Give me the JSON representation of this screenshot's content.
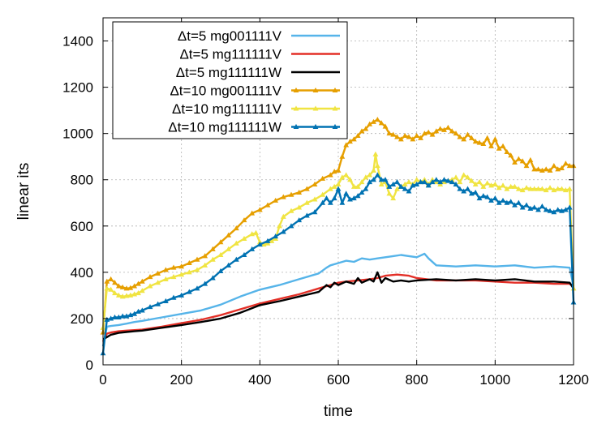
{
  "chart_data": {
    "type": "line",
    "xlabel": "time",
    "ylabel": "linear its",
    "xlim": [
      0,
      1200
    ],
    "ylim": [
      0,
      1500
    ],
    "xticks": [
      0,
      200,
      400,
      600,
      800,
      1000,
      1200
    ],
    "yticks": [
      0,
      200,
      400,
      600,
      800,
      1000,
      1200,
      1400
    ],
    "grid": true,
    "legend_position": "top-left",
    "series": [
      {
        "name": "Δt=5 mg001111V",
        "color": "#56B4E9",
        "marker": "none",
        "x": [
          0,
          10,
          20,
          40,
          60,
          80,
          100,
          150,
          200,
          250,
          300,
          350,
          400,
          450,
          500,
          550,
          570,
          580,
          600,
          620,
          640,
          660,
          680,
          700,
          720,
          740,
          760,
          780,
          800,
          820,
          830,
          850,
          900,
          950,
          1000,
          1050,
          1100,
          1150,
          1190,
          1200
        ],
        "y": [
          80,
          165,
          168,
          172,
          178,
          185,
          190,
          205,
          220,
          235,
          260,
          295,
          325,
          345,
          370,
          395,
          420,
          430,
          440,
          450,
          445,
          460,
          455,
          460,
          465,
          470,
          475,
          470,
          465,
          480,
          460,
          430,
          425,
          430,
          425,
          430,
          420,
          425,
          420,
          340
        ]
      },
      {
        "name": "Δt=5 mg111111V",
        "color": "#E32F27",
        "marker": "none",
        "x": [
          0,
          10,
          20,
          40,
          60,
          80,
          100,
          150,
          200,
          250,
          300,
          350,
          400,
          450,
          500,
          550,
          580,
          600,
          620,
          650,
          680,
          700,
          720,
          750,
          780,
          800,
          850,
          900,
          950,
          1000,
          1050,
          1100,
          1150,
          1190,
          1200
        ],
        "y": [
          100,
          135,
          140,
          145,
          148,
          150,
          152,
          165,
          180,
          195,
          215,
          240,
          265,
          285,
          305,
          330,
          345,
          355,
          360,
          365,
          370,
          375,
          385,
          390,
          385,
          375,
          365,
          365,
          365,
          360,
          355,
          355,
          350,
          350,
          340
        ]
      },
      {
        "name": "Δt=5 mg111111W",
        "color": "#000000",
        "marker": "none",
        "x": [
          0,
          10,
          20,
          40,
          60,
          80,
          100,
          150,
          200,
          250,
          300,
          350,
          400,
          450,
          500,
          550,
          570,
          580,
          590,
          600,
          620,
          640,
          650,
          660,
          680,
          690,
          700,
          710,
          720,
          740,
          760,
          780,
          800,
          850,
          900,
          950,
          1000,
          1050,
          1100,
          1150,
          1190,
          1200
        ],
        "y": [
          110,
          120,
          130,
          138,
          142,
          145,
          148,
          160,
          172,
          185,
          200,
          225,
          258,
          275,
          295,
          315,
          345,
          335,
          355,
          345,
          360,
          350,
          375,
          355,
          370,
          360,
          400,
          355,
          375,
          360,
          365,
          360,
          365,
          370,
          365,
          370,
          365,
          370,
          360,
          360,
          355,
          330
        ]
      },
      {
        "name": "Δt=10 mg001111V",
        "color": "#E69F00",
        "marker": "triangle",
        "x": [
          0,
          10,
          20,
          30,
          40,
          50,
          60,
          70,
          80,
          90,
          100,
          120,
          140,
          160,
          180,
          200,
          220,
          240,
          260,
          280,
          300,
          320,
          340,
          360,
          380,
          400,
          420,
          440,
          460,
          480,
          500,
          520,
          540,
          560,
          580,
          590,
          600,
          610,
          620,
          630,
          640,
          650,
          660,
          670,
          680,
          690,
          700,
          710,
          720,
          730,
          740,
          750,
          760,
          770,
          780,
          790,
          800,
          810,
          820,
          830,
          840,
          850,
          860,
          870,
          880,
          890,
          900,
          910,
          920,
          930,
          940,
          950,
          960,
          970,
          980,
          990,
          1000,
          1010,
          1020,
          1030,
          1040,
          1050,
          1060,
          1070,
          1080,
          1090,
          1100,
          1110,
          1120,
          1130,
          1140,
          1150,
          1160,
          1170,
          1180,
          1190,
          1200
        ],
        "y": [
          140,
          360,
          370,
          355,
          340,
          335,
          330,
          332,
          340,
          350,
          360,
          380,
          395,
          410,
          420,
          425,
          440,
          455,
          470,
          500,
          530,
          560,
          590,
          625,
          655,
          670,
          690,
          710,
          725,
          735,
          745,
          760,
          780,
          805,
          820,
          835,
          840,
          900,
          950,
          965,
          975,
          990,
          1010,
          1020,
          1040,
          1050,
          1060,
          1045,
          1030,
          1000,
          995,
          985,
          975,
          990,
          985,
          975,
          990,
          980,
          1000,
          1005,
          995,
          1010,
          1020,
          1015,
          1025,
          1010,
          1000,
          985,
          975,
          995,
          980,
          965,
          960,
          955,
          980,
          945,
          975,
          935,
          945,
          920,
          905,
          875,
          890,
          880,
          860,
          885,
          845,
          845,
          840,
          845,
          840,
          860,
          845,
          850,
          870,
          860,
          860
        ]
      },
      {
        "name": "Δt=10 mg111111V",
        "color": "#F0E442",
        "marker": "triangle",
        "x": [
          0,
          10,
          20,
          30,
          40,
          50,
          60,
          70,
          80,
          90,
          100,
          120,
          140,
          160,
          180,
          200,
          220,
          240,
          260,
          280,
          300,
          320,
          340,
          360,
          380,
          390,
          400,
          410,
          420,
          430,
          440,
          450,
          460,
          480,
          500,
          520,
          540,
          560,
          580,
          590,
          600,
          610,
          620,
          630,
          640,
          650,
          660,
          670,
          680,
          690,
          695,
          700,
          710,
          720,
          730,
          740,
          750,
          760,
          770,
          780,
          790,
          800,
          810,
          820,
          830,
          840,
          850,
          860,
          870,
          880,
          890,
          900,
          910,
          920,
          930,
          940,
          950,
          960,
          970,
          980,
          990,
          1000,
          1010,
          1020,
          1030,
          1040,
          1050,
          1060,
          1070,
          1080,
          1090,
          1100,
          1110,
          1120,
          1130,
          1140,
          1150,
          1160,
          1170,
          1180,
          1190,
          1200
        ],
        "y": [
          160,
          330,
          325,
          310,
          300,
          295,
          298,
          300,
          305,
          310,
          320,
          340,
          355,
          370,
          380,
          390,
          400,
          410,
          430,
          455,
          475,
          500,
          525,
          545,
          565,
          570,
          530,
          520,
          525,
          535,
          545,
          600,
          640,
          665,
          680,
          700,
          715,
          735,
          760,
          770,
          780,
          810,
          820,
          800,
          770,
          770,
          790,
          810,
          820,
          840,
          910,
          860,
          780,
          790,
          740,
          720,
          760,
          770,
          780,
          790,
          780,
          800,
          790,
          800,
          780,
          800,
          790,
          780,
          790,
          795,
          800,
          810,
          790,
          820,
          810,
          795,
          780,
          790,
          770,
          785,
          775,
          780,
          765,
          775,
          760,
          770,
          770,
          760,
          755,
          765,
          760,
          760,
          760,
          760,
          755,
          765,
          755,
          760,
          760,
          755,
          760,
          330
        ]
      },
      {
        "name": "Δt=10 mg111111W",
        "color": "#0072B2",
        "marker": "triangle",
        "x": [
          0,
          10,
          20,
          30,
          40,
          50,
          60,
          70,
          80,
          90,
          100,
          120,
          140,
          160,
          180,
          200,
          220,
          240,
          260,
          280,
          300,
          320,
          340,
          360,
          380,
          400,
          420,
          440,
          460,
          480,
          500,
          520,
          540,
          560,
          570,
          580,
          590,
          600,
          610,
          620,
          630,
          640,
          650,
          660,
          670,
          680,
          690,
          700,
          710,
          720,
          730,
          740,
          750,
          760,
          770,
          780,
          790,
          800,
          810,
          820,
          830,
          840,
          850,
          860,
          870,
          880,
          890,
          900,
          910,
          920,
          930,
          940,
          950,
          960,
          970,
          980,
          990,
          1000,
          1010,
          1020,
          1030,
          1040,
          1050,
          1060,
          1070,
          1080,
          1090,
          1100,
          1110,
          1120,
          1130,
          1140,
          1150,
          1160,
          1170,
          1180,
          1190,
          1200
        ],
        "y": [
          50,
          195,
          200,
          205,
          205,
          210,
          210,
          215,
          220,
          230,
          235,
          250,
          262,
          275,
          290,
          300,
          315,
          330,
          350,
          375,
          405,
          430,
          455,
          475,
          500,
          520,
          535,
          555,
          575,
          600,
          625,
          645,
          660,
          700,
          720,
          700,
          720,
          760,
          700,
          740,
          715,
          720,
          730,
          745,
          760,
          790,
          800,
          820,
          800,
          800,
          770,
          780,
          790,
          770,
          760,
          750,
          775,
          780,
          790,
          790,
          775,
          790,
          800,
          790,
          800,
          795,
          790,
          780,
          760,
          750,
          760,
          740,
          745,
          720,
          730,
          725,
          710,
          720,
          700,
          710,
          700,
          705,
          690,
          700,
          680,
          690,
          675,
          680,
          670,
          685,
          670,
          665,
          660,
          670,
          665,
          670,
          680,
          270
        ]
      }
    ]
  }
}
